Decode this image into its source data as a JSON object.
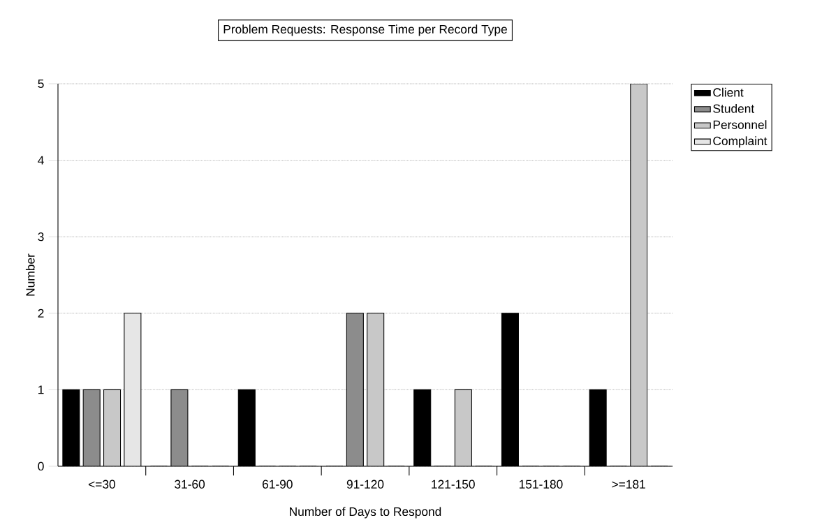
{
  "chart_data": {
    "type": "bar",
    "title": "Problem Requests: Response Time per Record Type",
    "xlabel": "Number of Days to Respond",
    "ylabel": "Number",
    "categories": [
      "<=30",
      "31-60",
      "61-90",
      "91-120",
      "121-150",
      "151-180",
      ">=181"
    ],
    "series": [
      {
        "name": "Client",
        "color": "#000000",
        "values": [
          1,
          0,
          1,
          0,
          1,
          2,
          1
        ]
      },
      {
        "name": "Student",
        "color": "#8c8c8c",
        "values": [
          1,
          1,
          0,
          2,
          0,
          0,
          0
        ]
      },
      {
        "name": "Personnel",
        "color": "#c8c8c8",
        "values": [
          1,
          0,
          0,
          2,
          1,
          0,
          5
        ]
      },
      {
        "name": "Complaint",
        "color": "#e6e6e6",
        "values": [
          2,
          0,
          0,
          0,
          0,
          0,
          0
        ]
      }
    ],
    "ylim": [
      0,
      5
    ],
    "yticks": [
      0,
      1,
      2,
      3,
      4,
      5
    ],
    "grid": "y",
    "legend": "top right"
  }
}
